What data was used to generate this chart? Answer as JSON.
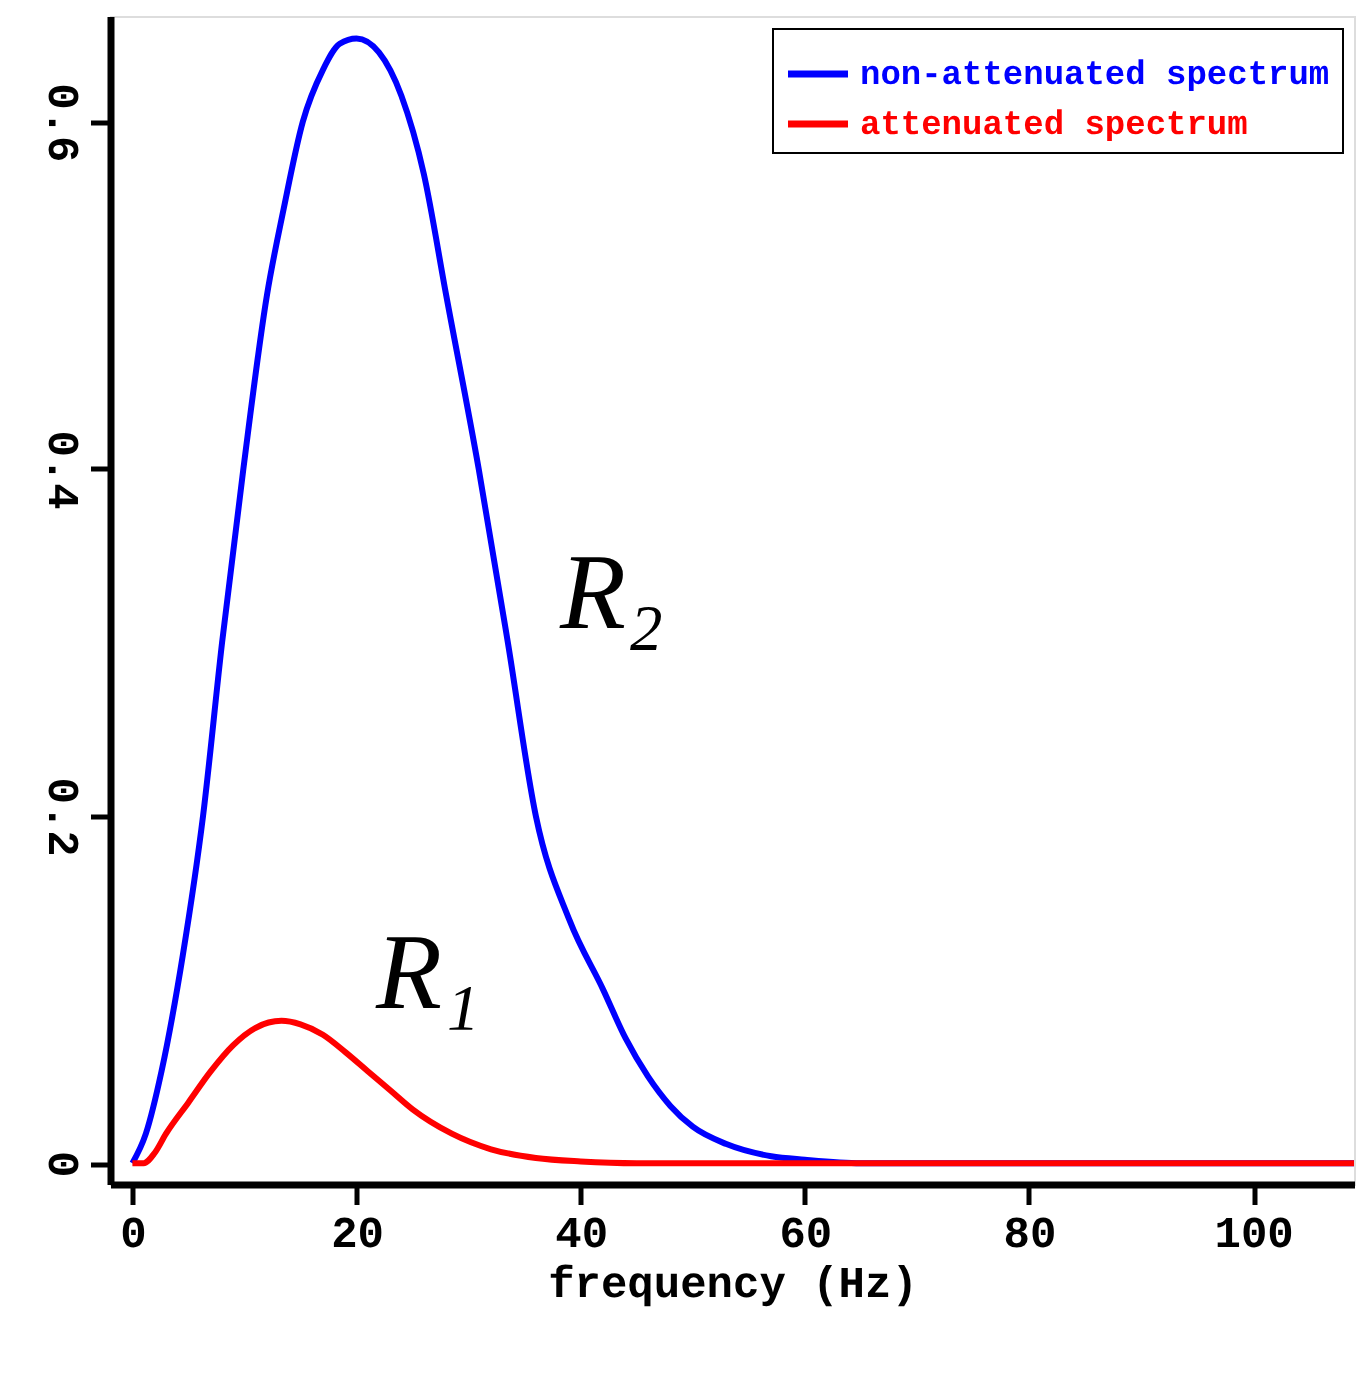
{
  "chart_data": {
    "type": "line",
    "xlabel": "frequency (Hz)",
    "xlim": [
      -2,
      109
    ],
    "xticks": [
      0,
      20,
      40,
      60,
      80,
      100
    ],
    "ylim": [
      -0.012,
      0.661
    ],
    "yticks": [
      0,
      0.2,
      0.4,
      0.6
    ],
    "grid": false,
    "legend": "top right",
    "marker": "none",
    "line_style": "solid",
    "annotations": [
      "R₂",
      "R₁"
    ],
    "series": [
      {
        "name": "non-attenuated spectrum",
        "color": "#0000ff",
        "x": [
          0,
          1.2,
          2.6,
          4.5,
          6.3,
          8,
          9.9,
          12,
          13.5,
          15.2,
          17,
          18.5,
          20,
          22,
          24,
          26,
          28,
          30.9,
          33.5,
          36,
          39,
          42,
          44,
          46,
          48,
          50,
          53,
          57,
          60,
          65,
          80,
          109
        ],
        "values": [
          0,
          0.017,
          0.053,
          0.12,
          0.2,
          0.3,
          0.4,
          0.5,
          0.55,
          0.6,
          0.63,
          0.645,
          0.648,
          0.64,
          0.615,
          0.57,
          0.5,
          0.4,
          0.3,
          0.2,
          0.14,
          0.1,
          0.072,
          0.05,
          0.033,
          0.021,
          0.011,
          0.004,
          0.002,
          0,
          0,
          0
        ]
      },
      {
        "name": "attenuated spectrum",
        "color": "#ff0000",
        "x": [
          0,
          1,
          2,
          3,
          5,
          7,
          9,
          11,
          13.3,
          15,
          17,
          19,
          21,
          23,
          25,
          28.5,
          32,
          36,
          40,
          45,
          60,
          80,
          109
        ],
        "values": [
          0,
          0,
          0.006,
          0.017,
          0.035,
          0.053,
          0.068,
          0.078,
          0.082,
          0.08,
          0.074,
          0.064,
          0.053,
          0.042,
          0.031,
          0.017,
          0.008,
          0.003,
          0.001,
          0,
          0,
          0,
          0
        ]
      }
    ]
  }
}
